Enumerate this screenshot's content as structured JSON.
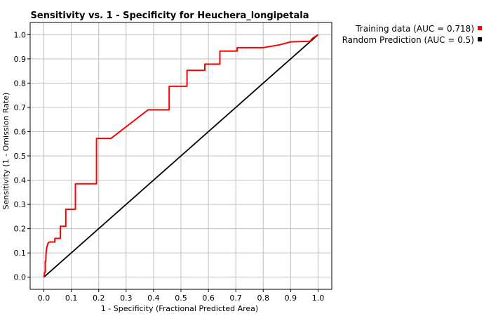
{
  "chart_data": {
    "type": "line",
    "title": "Sensitivity vs. 1 - Specificity for Heuchera_longipetala",
    "xlabel": "1 - Specificity  (Fractional Predicted Area)",
    "ylabel": "Sensitivity  (1 - Omission Rate)",
    "xlim": [
      -0.05,
      1.05
    ],
    "ylim": [
      -0.05,
      1.05
    ],
    "x_ticks": [
      "0.0",
      "0.1",
      "0.2",
      "0.3",
      "0.4",
      "0.5",
      "0.6",
      "0.7",
      "0.8",
      "0.9",
      "1.0"
    ],
    "y_ticks": [
      "0.0",
      "0.1",
      "0.2",
      "0.3",
      "0.4",
      "0.5",
      "0.6",
      "0.7",
      "0.8",
      "0.9",
      "1.0"
    ],
    "grid": true,
    "legend_position": "top-right",
    "series": [
      {
        "name": "Training data (AUC = 0.718)",
        "color": "#ff0000",
        "x": [
          0.0,
          0.003,
          0.005,
          0.005,
          0.007,
          0.008,
          0.01,
          0.015,
          0.02,
          0.03,
          0.04,
          0.04,
          0.055,
          0.06,
          0.06,
          0.078,
          0.08,
          0.08,
          0.1,
          0.112,
          0.115,
          0.115,
          0.19,
          0.192,
          0.192,
          0.245,
          0.3,
          0.38,
          0.455,
          0.457,
          0.457,
          0.52,
          0.522,
          0.522,
          0.585,
          0.587,
          0.587,
          0.64,
          0.642,
          0.642,
          0.7,
          0.705,
          0.705,
          0.8,
          0.86,
          0.9,
          0.96,
          0.97,
          0.98,
          1.0
        ],
        "y": [
          0.0,
          0.02,
          0.02,
          0.065,
          0.065,
          0.1,
          0.12,
          0.14,
          0.145,
          0.145,
          0.145,
          0.16,
          0.16,
          0.16,
          0.21,
          0.21,
          0.21,
          0.28,
          0.28,
          0.28,
          0.28,
          0.385,
          0.385,
          0.385,
          0.572,
          0.572,
          0.62,
          0.69,
          0.69,
          0.69,
          0.787,
          0.787,
          0.787,
          0.853,
          0.853,
          0.853,
          0.878,
          0.878,
          0.878,
          0.932,
          0.932,
          0.932,
          0.946,
          0.946,
          0.958,
          0.97,
          0.972,
          0.972,
          0.985,
          1.0
        ]
      },
      {
        "name": "Random Prediction (AUC = 0.5)",
        "color": "#000000",
        "x": [
          0.0,
          1.0
        ],
        "y": [
          0.0,
          1.0
        ]
      }
    ]
  }
}
